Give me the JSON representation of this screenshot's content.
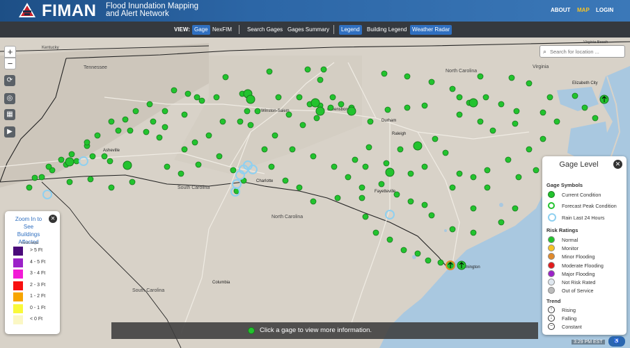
{
  "header": {
    "app_title": "FIMAN",
    "app_subtitle_line1": "Flood Inundation Mapping",
    "app_subtitle_line2": "and Alert Network",
    "nav": {
      "about": "ABOUT",
      "map": "MAP",
      "login": "LOGIN"
    }
  },
  "toolbar": {
    "view_label": "VIEW:",
    "gage": "Gage",
    "nexfim": "NexFIM",
    "search_gages": "Search Gages",
    "gages_summary": "Gages Summary",
    "legend": "Legend",
    "building_legend": "Building Legend",
    "weather_radar": "Weather Radar"
  },
  "map_controls": {
    "zoom_in": "+",
    "zoom_out": "−"
  },
  "search": {
    "placeholder": "Search for location ..."
  },
  "map_labels": {
    "tennessee": "Tennessee",
    "kentucky": "Kentucky",
    "virginia": "Virginia",
    "virginia_beach": "Virginia Beach",
    "north_carolina_n": "North Carolina",
    "winston_salem": "Winston-Salem",
    "greensboro": "Greensboro",
    "durham": "Durham",
    "raleigh": "Raleigh",
    "elizabeth_city": "Elizabeth City",
    "asheville": "Asheville",
    "charlotte": "Charlotte",
    "south_carolina": "South Carolina",
    "fayetteville": "Fayetteville",
    "north_carolina_s": "North Carolina",
    "wilmington": "Wilmington",
    "columbia": "Columbia",
    "south_carolina_s": "South Carolina"
  },
  "gage_legend": {
    "title": "Gage Level",
    "symbols_heading": "Gage Symbols",
    "symbols": [
      "Current Condition",
      "Forecast Peak Condition",
      "Rain Last 24 Hours"
    ],
    "risk_heading": "Risk Ratings",
    "risk": [
      {
        "label": "Normal",
        "color": "#22c32e"
      },
      {
        "label": "Monitor",
        "color": "#f7c325"
      },
      {
        "label": "Minor Flooding",
        "color": "#e08a2c"
      },
      {
        "label": "Moderate Flooding",
        "color": "#e31a1c"
      },
      {
        "label": "Major Flooding",
        "color": "#9b22c8"
      },
      {
        "label": "Not Risk Rated",
        "color": "#dfe7ef"
      },
      {
        "label": "Out of Service",
        "color": "#bbbbbb"
      }
    ],
    "trend_heading": "Trend",
    "trend": [
      "Rising",
      "Falling",
      "Constant"
    ]
  },
  "buildings_legend": {
    "title_line1": "Zoom In to",
    "title_line2": "See",
    "title_line3": "Buildings Affected",
    "scale_label": "Flood Height",
    "rows": [
      {
        "label": "> 5 Ft",
        "color": "#4a0a7a"
      },
      {
        "label": "4 - 5 Ft",
        "color": "#9b22c8"
      },
      {
        "label": "3 - 4 Ft",
        "color": "#f21bd6"
      },
      {
        "label": "2 - 3 Ft",
        "color": "#f81010"
      },
      {
        "label": "1 - 2 Ft",
        "color": "#f7a500"
      },
      {
        "label": "0 - 1 Ft",
        "color": "#f9f93a"
      },
      {
        "label": "< 0 Ft",
        "color": "#fbf7c4"
      }
    ]
  },
  "banner": {
    "message": "Click a gage to view more information."
  },
  "clock": "3:29 PM EST"
}
